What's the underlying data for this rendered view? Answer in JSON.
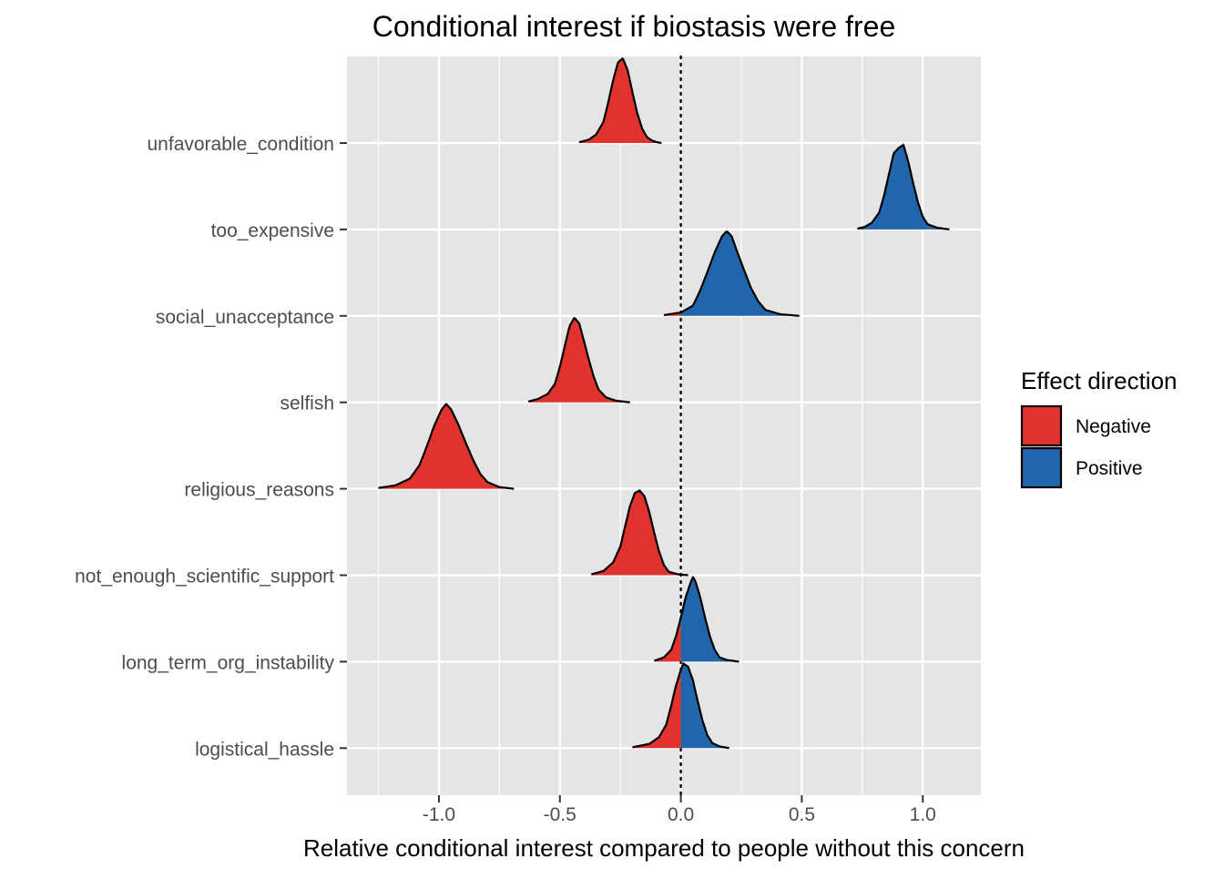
{
  "chart_data": {
    "type": "ridgeline",
    "title": "Conditional interest if biostasis were free",
    "xlabel": "Relative conditional interest compared to people without this concern",
    "ylabel": "",
    "xlim": [
      -1.38,
      1.24
    ],
    "x_ticks": [
      -1.0,
      -0.5,
      0.0,
      0.5,
      1.0
    ],
    "x_tick_labels": [
      "-1.0",
      "-0.5",
      "0.0",
      "0.5",
      "1.0"
    ],
    "reference_line": {
      "x": 0.0,
      "style": "dotted"
    },
    "grid": true,
    "legend": {
      "title": "Effect direction",
      "placement": "right",
      "entries": [
        {
          "label": "Negative",
          "color": "#E0332D"
        },
        {
          "label": "Positive",
          "color": "#2166AC"
        }
      ]
    },
    "colors": {
      "negative": "#E0332D",
      "positive": "#2166AC",
      "panel": "#E5E5E5",
      "grid": "#FFFFFF"
    },
    "categories": [
      "unfavorable_condition",
      "too_expensive",
      "social_unacceptance",
      "selfish",
      "religious_reasons",
      "not_enough_scientific_support",
      "long_term_org_instability",
      "logistical_hassle"
    ],
    "series": [
      {
        "category": "unfavorable_condition",
        "x": [
          -0.42,
          -0.38,
          -0.35,
          -0.32,
          -0.3,
          -0.28,
          -0.26,
          -0.24,
          -0.22,
          -0.2,
          -0.18,
          -0.16,
          -0.14,
          -0.12,
          -0.1,
          -0.08
        ],
        "density": [
          0.01,
          0.04,
          0.1,
          0.25,
          0.48,
          0.74,
          0.95,
          1.0,
          0.86,
          0.6,
          0.35,
          0.17,
          0.07,
          0.03,
          0.01,
          0.0
        ]
      },
      {
        "category": "too_expensive",
        "x": [
          0.73,
          0.76,
          0.79,
          0.82,
          0.84,
          0.86,
          0.88,
          0.9,
          0.92,
          0.94,
          0.96,
          0.98,
          1.0,
          1.02,
          1.06,
          1.11
        ],
        "density": [
          0.01,
          0.03,
          0.08,
          0.2,
          0.4,
          0.65,
          0.9,
          0.96,
          1.0,
          0.8,
          0.55,
          0.32,
          0.15,
          0.06,
          0.02,
          0.0
        ]
      },
      {
        "category": "social_unacceptance",
        "x": [
          -0.07,
          0.0,
          0.05,
          0.08,
          0.11,
          0.14,
          0.17,
          0.19,
          0.21,
          0.23,
          0.26,
          0.29,
          0.32,
          0.35,
          0.41,
          0.49
        ],
        "density": [
          0.01,
          0.04,
          0.12,
          0.3,
          0.52,
          0.75,
          0.94,
          1.0,
          0.94,
          0.78,
          0.55,
          0.33,
          0.17,
          0.07,
          0.02,
          0.0
        ]
      },
      {
        "category": "selfish",
        "x": [
          -0.63,
          -0.59,
          -0.55,
          -0.52,
          -0.5,
          -0.48,
          -0.46,
          -0.44,
          -0.42,
          -0.4,
          -0.38,
          -0.36,
          -0.34,
          -0.31,
          -0.27,
          -0.21
        ],
        "density": [
          0.01,
          0.04,
          0.1,
          0.22,
          0.42,
          0.66,
          0.9,
          1.0,
          0.93,
          0.72,
          0.5,
          0.3,
          0.15,
          0.06,
          0.02,
          0.0
        ]
      },
      {
        "category": "religious_reasons",
        "x": [
          -1.25,
          -1.18,
          -1.12,
          -1.08,
          -1.05,
          -1.02,
          -0.99,
          -0.97,
          -0.95,
          -0.92,
          -0.89,
          -0.86,
          -0.83,
          -0.8,
          -0.75,
          -0.69
        ],
        "density": [
          0.01,
          0.04,
          0.12,
          0.28,
          0.5,
          0.74,
          0.93,
          1.0,
          0.94,
          0.76,
          0.55,
          0.35,
          0.18,
          0.08,
          0.02,
          0.0
        ]
      },
      {
        "category": "not_enough_scientific_support",
        "x": [
          -0.37,
          -0.32,
          -0.28,
          -0.25,
          -0.23,
          -0.21,
          -0.19,
          -0.17,
          -0.15,
          -0.13,
          -0.11,
          -0.09,
          -0.07,
          -0.05,
          -0.01,
          0.03
        ],
        "density": [
          0.01,
          0.05,
          0.15,
          0.34,
          0.58,
          0.82,
          0.97,
          1.0,
          0.93,
          0.74,
          0.5,
          0.28,
          0.12,
          0.04,
          0.01,
          0.0
        ]
      },
      {
        "category": "long_term_org_instability",
        "x": [
          -0.11,
          -0.07,
          -0.04,
          -0.02,
          0.0,
          0.02,
          0.04,
          0.05,
          0.06,
          0.08,
          0.1,
          0.12,
          0.14,
          0.16,
          0.19,
          0.24
        ],
        "density": [
          0.01,
          0.05,
          0.14,
          0.3,
          0.52,
          0.76,
          0.93,
          1.0,
          0.95,
          0.76,
          0.52,
          0.3,
          0.14,
          0.05,
          0.02,
          0.0
        ]
      },
      {
        "category": "logistical_hassle",
        "x": [
          -0.2,
          -0.13,
          -0.09,
          -0.06,
          -0.04,
          -0.02,
          0.0,
          0.01,
          0.03,
          0.05,
          0.07,
          0.09,
          0.11,
          0.13,
          0.16,
          0.2
        ],
        "density": [
          0.01,
          0.05,
          0.13,
          0.28,
          0.5,
          0.74,
          0.92,
          1.0,
          0.96,
          0.8,
          0.55,
          0.32,
          0.15,
          0.06,
          0.02,
          0.0
        ]
      }
    ]
  }
}
